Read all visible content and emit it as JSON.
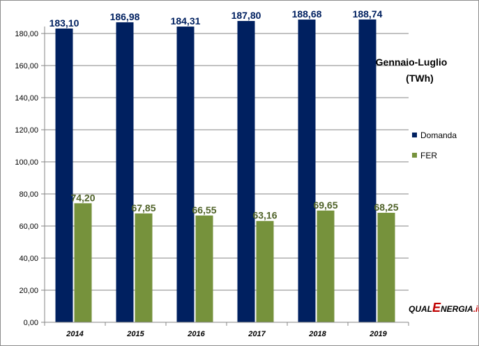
{
  "chart_data": {
    "type": "bar",
    "title": "Gennaio-Luglio",
    "subtitle": "(TWh)",
    "categories": [
      "2014",
      "2015",
      "2016",
      "2017",
      "2018",
      "2019"
    ],
    "series": [
      {
        "name": "Domanda",
        "color": "#002060",
        "values": [
          183.1,
          186.98,
          184.31,
          187.8,
          188.68,
          188.74
        ],
        "labels": [
          "183,10",
          "186,98",
          "184,31",
          "187,80",
          "188,68",
          "188,74"
        ]
      },
      {
        "name": "FER",
        "color": "#76923c",
        "values": [
          74.2,
          67.85,
          66.55,
          63.16,
          69.65,
          68.25
        ],
        "labels": [
          "74,20",
          "67,85",
          "66,55",
          "63,16",
          "69,65",
          "68,25"
        ]
      }
    ],
    "ylim": [
      0,
      180
    ],
    "yticks": [
      "0,00",
      "20,00",
      "40,00",
      "60,00",
      "80,00",
      "100,00",
      "120,00",
      "140,00",
      "160,00",
      "180,00"
    ],
    "grid": true,
    "legend_position": "right"
  },
  "logo": {
    "part1": "QUAL",
    "part2": "E",
    "part3": "NERGIA",
    "part4": ".it"
  }
}
